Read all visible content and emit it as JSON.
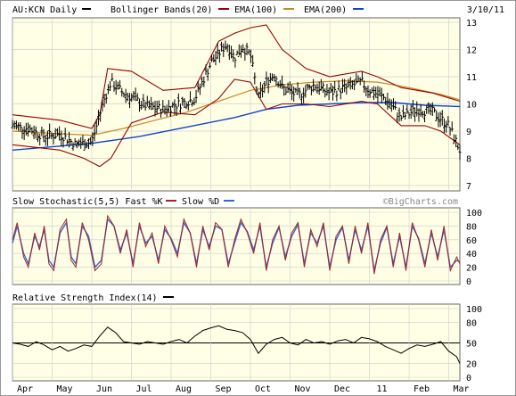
{
  "header": {
    "symbol_label": "AU:KCN Daily",
    "indicator_bollinger": "Bollinger Bands(20)",
    "indicator_ema100": "EMA(100)",
    "indicator_ema200": "EMA(200)",
    "date": "3/10/11"
  },
  "stochastic_label": "Slow Stochastic(5,5) Fast %K",
  "stochastic_slow_label": "Slow %D",
  "watermark": "©BigCharts.com",
  "rsi_label": "Relative Strength Index(14)",
  "colors": {
    "background": "#ffffe6",
    "price": "#000000",
    "bollinger": "#990000",
    "ema100": "#cc8822",
    "ema200": "#1144cc",
    "stoch_k": "#aa2222",
    "stoch_d": "#3366cc"
  },
  "chart_data": [
    {
      "type": "line",
      "title": "AU:KCN Daily",
      "yticks": [
        7,
        8,
        9,
        10,
        11,
        12,
        13
      ],
      "ylim": [
        7,
        13
      ],
      "x_labels": [
        "Apr",
        "May",
        "Jun",
        "Jul",
        "Aug",
        "Sep",
        "Oct",
        "Nov",
        "Dec",
        "11",
        "Feb",
        "Mar"
      ],
      "x_label_positions": [
        0.0,
        0.25,
        0.5,
        0.75,
        1.0,
        1.25,
        1.5,
        1.75,
        2.0,
        2.25,
        2.5,
        2.75
      ],
      "series": [
        {
          "name": "AU:KCN Daily",
          "kind": "ohlc",
          "anchors_x": [
            0,
            0.1,
            0.2,
            0.3,
            0.4,
            0.5,
            0.58,
            0.62,
            0.7,
            0.85,
            0.95,
            1.05,
            1.15,
            1.25,
            1.35,
            1.4,
            1.45,
            1.5,
            1.55,
            1.6,
            1.65,
            1.7,
            1.8,
            1.9,
            2.0,
            2.1,
            2.2,
            2.25,
            2.35,
            2.45,
            2.55,
            2.65,
            2.75,
            2.82
          ],
          "anchors_y": [
            9.2,
            9.1,
            8.8,
            8.9,
            8.5,
            8.6,
            10.2,
            10.8,
            10.4,
            9.9,
            9.8,
            10.0,
            10.2,
            11.5,
            12.2,
            11.7,
            12.1,
            11.8,
            10.2,
            10.8,
            11.1,
            10.6,
            10.3,
            10.7,
            10.4,
            10.6,
            10.8,
            10.5,
            10.2,
            9.5,
            9.8,
            9.7,
            9.2,
            8.3
          ]
        },
        {
          "name": "Bollinger Bands(20)",
          "kind": "upper",
          "anchors_x": [
            0,
            0.3,
            0.5,
            0.55,
            0.6,
            0.75,
            0.95,
            1.15,
            1.3,
            1.4,
            1.5,
            1.6,
            1.7,
            1.85,
            2.0,
            2.2,
            2.3,
            2.45,
            2.65,
            2.82
          ],
          "anchors_y": [
            9.6,
            9.4,
            9.1,
            9.6,
            11.3,
            11.2,
            10.5,
            10.6,
            12.3,
            12.6,
            12.8,
            12.9,
            12.0,
            11.3,
            11.0,
            11.2,
            11.0,
            10.6,
            10.4,
            10.1
          ]
        },
        {
          "name": "Bollinger Bands(20)",
          "kind": "lower",
          "anchors_x": [
            0,
            0.3,
            0.45,
            0.55,
            0.62,
            0.75,
            0.95,
            1.15,
            1.3,
            1.4,
            1.5,
            1.6,
            1.7,
            1.85,
            2.0,
            2.2,
            2.3,
            2.45,
            2.6,
            2.7,
            2.82
          ],
          "anchors_y": [
            8.5,
            8.3,
            8.0,
            7.7,
            8.0,
            9.3,
            9.7,
            9.6,
            10.2,
            10.9,
            10.8,
            9.8,
            10.0,
            10.0,
            9.9,
            10.1,
            10.0,
            9.2,
            9.2,
            9.0,
            8.5
          ]
        },
        {
          "name": "EMA(100)",
          "anchors_x": [
            0,
            0.3,
            0.5,
            0.7,
            0.9,
            1.1,
            1.3,
            1.5,
            1.7,
            1.9,
            2.1,
            2.3,
            2.5,
            2.7,
            2.82
          ],
          "anchors_y": [
            9.0,
            8.9,
            8.85,
            9.1,
            9.4,
            9.7,
            10.1,
            10.5,
            10.7,
            10.8,
            10.85,
            10.8,
            10.6,
            10.35,
            10.15
          ]
        },
        {
          "name": "EMA(200)",
          "anchors_x": [
            0,
            0.3,
            0.5,
            0.8,
            1.1,
            1.4,
            1.6,
            1.8,
            2.0,
            2.2,
            2.4,
            2.6,
            2.82
          ],
          "anchors_y": [
            8.3,
            8.45,
            8.55,
            8.8,
            9.15,
            9.5,
            9.8,
            9.95,
            10.0,
            10.05,
            10.05,
            9.95,
            9.9
          ]
        }
      ]
    },
    {
      "type": "line",
      "title": "Slow Stochastic(5,5)",
      "ylim": [
        0,
        100
      ],
      "yticks": [
        0,
        20,
        40,
        60,
        80,
        100
      ],
      "series": [
        {
          "name": "Fast %K",
          "anchors_x": [
            0,
            0.03,
            0.07,
            0.1,
            0.14,
            0.17,
            0.2,
            0.23,
            0.26,
            0.3,
            0.34,
            0.37,
            0.4,
            0.44,
            0.48,
            0.52,
            0.56,
            0.6,
            0.64,
            0.68,
            0.72,
            0.76,
            0.8,
            0.84,
            0.88,
            0.92,
            0.96,
            1.0,
            1.04,
            1.08,
            1.12,
            1.16,
            1.2,
            1.24,
            1.28,
            1.32,
            1.36,
            1.4,
            1.44,
            1.48,
            1.52,
            1.56,
            1.6,
            1.64,
            1.68,
            1.72,
            1.76,
            1.8,
            1.84,
            1.88,
            1.92,
            1.96,
            2.0,
            2.04,
            2.08,
            2.12,
            2.16,
            2.2,
            2.24,
            2.28,
            2.32,
            2.36,
            2.4,
            2.44,
            2.48,
            2.52,
            2.56,
            2.6,
            2.64,
            2.68,
            2.72,
            2.76,
            2.8,
            2.82
          ],
          "anchors_y": [
            60,
            85,
            35,
            20,
            70,
            45,
            80,
            25,
            15,
            75,
            90,
            30,
            20,
            85,
            60,
            15,
            25,
            95,
            80,
            40,
            75,
            20,
            85,
            50,
            70,
            25,
            80,
            60,
            35,
            90,
            70,
            20,
            80,
            45,
            85,
            75,
            20,
            60,
            90,
            70,
            40,
            85,
            15,
            60,
            80,
            30,
            70,
            85,
            20,
            75,
            50,
            85,
            15,
            65,
            80,
            25,
            80,
            40,
            85,
            10,
            60,
            80,
            20,
            70,
            15,
            85,
            60,
            20,
            75,
            30,
            80,
            15,
            35,
            25
          ]
        },
        {
          "name": "Slow %D",
          "anchors_x": [
            0,
            0.03,
            0.07,
            0.1,
            0.14,
            0.17,
            0.2,
            0.23,
            0.26,
            0.3,
            0.34,
            0.37,
            0.4,
            0.44,
            0.48,
            0.52,
            0.56,
            0.6,
            0.64,
            0.68,
            0.72,
            0.76,
            0.8,
            0.84,
            0.88,
            0.92,
            0.96,
            1.0,
            1.04,
            1.08,
            1.12,
            1.16,
            1.2,
            1.24,
            1.28,
            1.32,
            1.36,
            1.4,
            1.44,
            1.48,
            1.52,
            1.56,
            1.6,
            1.64,
            1.68,
            1.72,
            1.76,
            1.8,
            1.84,
            1.88,
            1.92,
            1.96,
            2.0,
            2.04,
            2.08,
            2.12,
            2.16,
            2.2,
            2.24,
            2.28,
            2.32,
            2.36,
            2.4,
            2.44,
            2.48,
            2.52,
            2.56,
            2.6,
            2.64,
            2.68,
            2.72,
            2.76,
            2.8,
            2.82
          ],
          "anchors_y": [
            55,
            80,
            40,
            25,
            65,
            50,
            75,
            30,
            20,
            70,
            85,
            35,
            25,
            80,
            65,
            20,
            30,
            90,
            80,
            45,
            70,
            25,
            80,
            55,
            65,
            30,
            75,
            62,
            40,
            85,
            70,
            25,
            75,
            50,
            80,
            75,
            25,
            55,
            85,
            72,
            45,
            80,
            20,
            55,
            78,
            35,
            65,
            82,
            25,
            70,
            55,
            80,
            20,
            60,
            78,
            30,
            75,
            45,
            80,
            15,
            55,
            78,
            25,
            65,
            20,
            80,
            62,
            25,
            70,
            35,
            75,
            20,
            30,
            28
          ]
        }
      ]
    },
    {
      "type": "line",
      "title": "Relative Strength Index(14)",
      "ylim": [
        0,
        100
      ],
      "yticks": [
        0,
        20,
        50,
        80,
        100
      ],
      "series": [
        {
          "name": "Relative Strength Index(14)",
          "anchors_x": [
            0,
            0.05,
            0.1,
            0.15,
            0.2,
            0.25,
            0.3,
            0.35,
            0.4,
            0.45,
            0.5,
            0.55,
            0.6,
            0.65,
            0.7,
            0.75,
            0.8,
            0.85,
            0.9,
            0.95,
            1.0,
            1.05,
            1.1,
            1.15,
            1.2,
            1.25,
            1.3,
            1.35,
            1.4,
            1.45,
            1.5,
            1.55,
            1.6,
            1.65,
            1.7,
            1.75,
            1.8,
            1.85,
            1.9,
            1.95,
            2.0,
            2.05,
            2.1,
            2.15,
            2.2,
            2.25,
            2.3,
            2.35,
            2.4,
            2.45,
            2.5,
            2.55,
            2.6,
            2.65,
            2.7,
            2.75,
            2.8,
            2.82
          ],
          "anchors_y": [
            50,
            48,
            45,
            52,
            47,
            40,
            45,
            38,
            42,
            47,
            45,
            60,
            73,
            65,
            52,
            50,
            48,
            52,
            50,
            48,
            52,
            55,
            50,
            60,
            68,
            72,
            75,
            70,
            68,
            65,
            55,
            35,
            48,
            55,
            58,
            50,
            47,
            55,
            50,
            52,
            48,
            53,
            55,
            50,
            58,
            56,
            52,
            45,
            40,
            35,
            42,
            47,
            45,
            48,
            52,
            38,
            30,
            20
          ]
        }
      ]
    }
  ]
}
